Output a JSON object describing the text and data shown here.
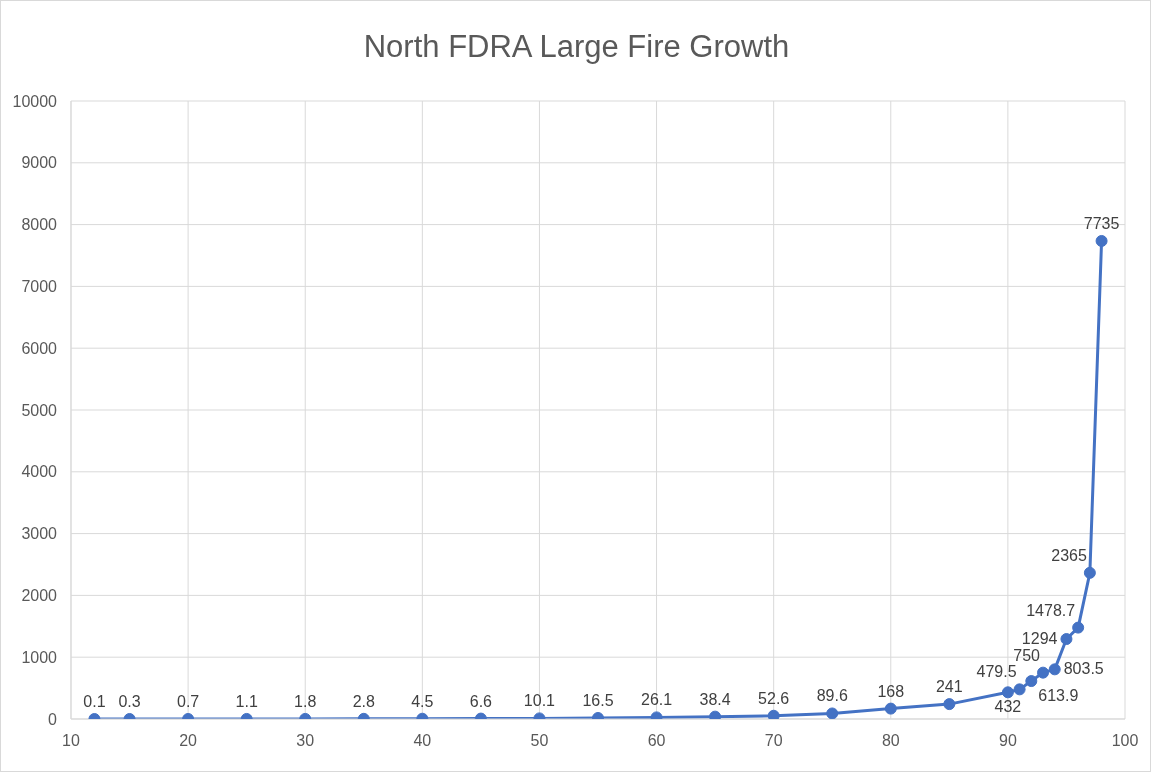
{
  "chart_data": {
    "type": "line",
    "title": "North FDRA Large Fire Growth",
    "x": [
      12,
      15,
      20,
      25,
      30,
      35,
      40,
      45,
      50,
      55,
      60,
      65,
      70,
      75,
      80,
      85,
      90,
      91,
      92,
      93,
      94,
      95,
      96,
      97,
      98
    ],
    "values": [
      0.1,
      0.3,
      0.7,
      1.1,
      1.8,
      2.8,
      4.5,
      6.6,
      10.1,
      16.5,
      26.1,
      38.4,
      52.6,
      89.6,
      168,
      241,
      432,
      479.5,
      613.9,
      750,
      803.5,
      1294,
      1478.7,
      2365,
      7735
    ],
    "color": "#4472c4",
    "marker": "circle",
    "line_style": "solid",
    "data_labels": true,
    "grid": true,
    "xlim": [
      10,
      100
    ],
    "xticks": [
      10,
      20,
      30,
      40,
      50,
      60,
      70,
      80,
      90,
      100
    ],
    "ylim": [
      0,
      10000
    ],
    "yticks": [
      0,
      1000,
      2000,
      3000,
      4000,
      5000,
      6000,
      7000,
      8000,
      9000,
      10000
    ]
  }
}
